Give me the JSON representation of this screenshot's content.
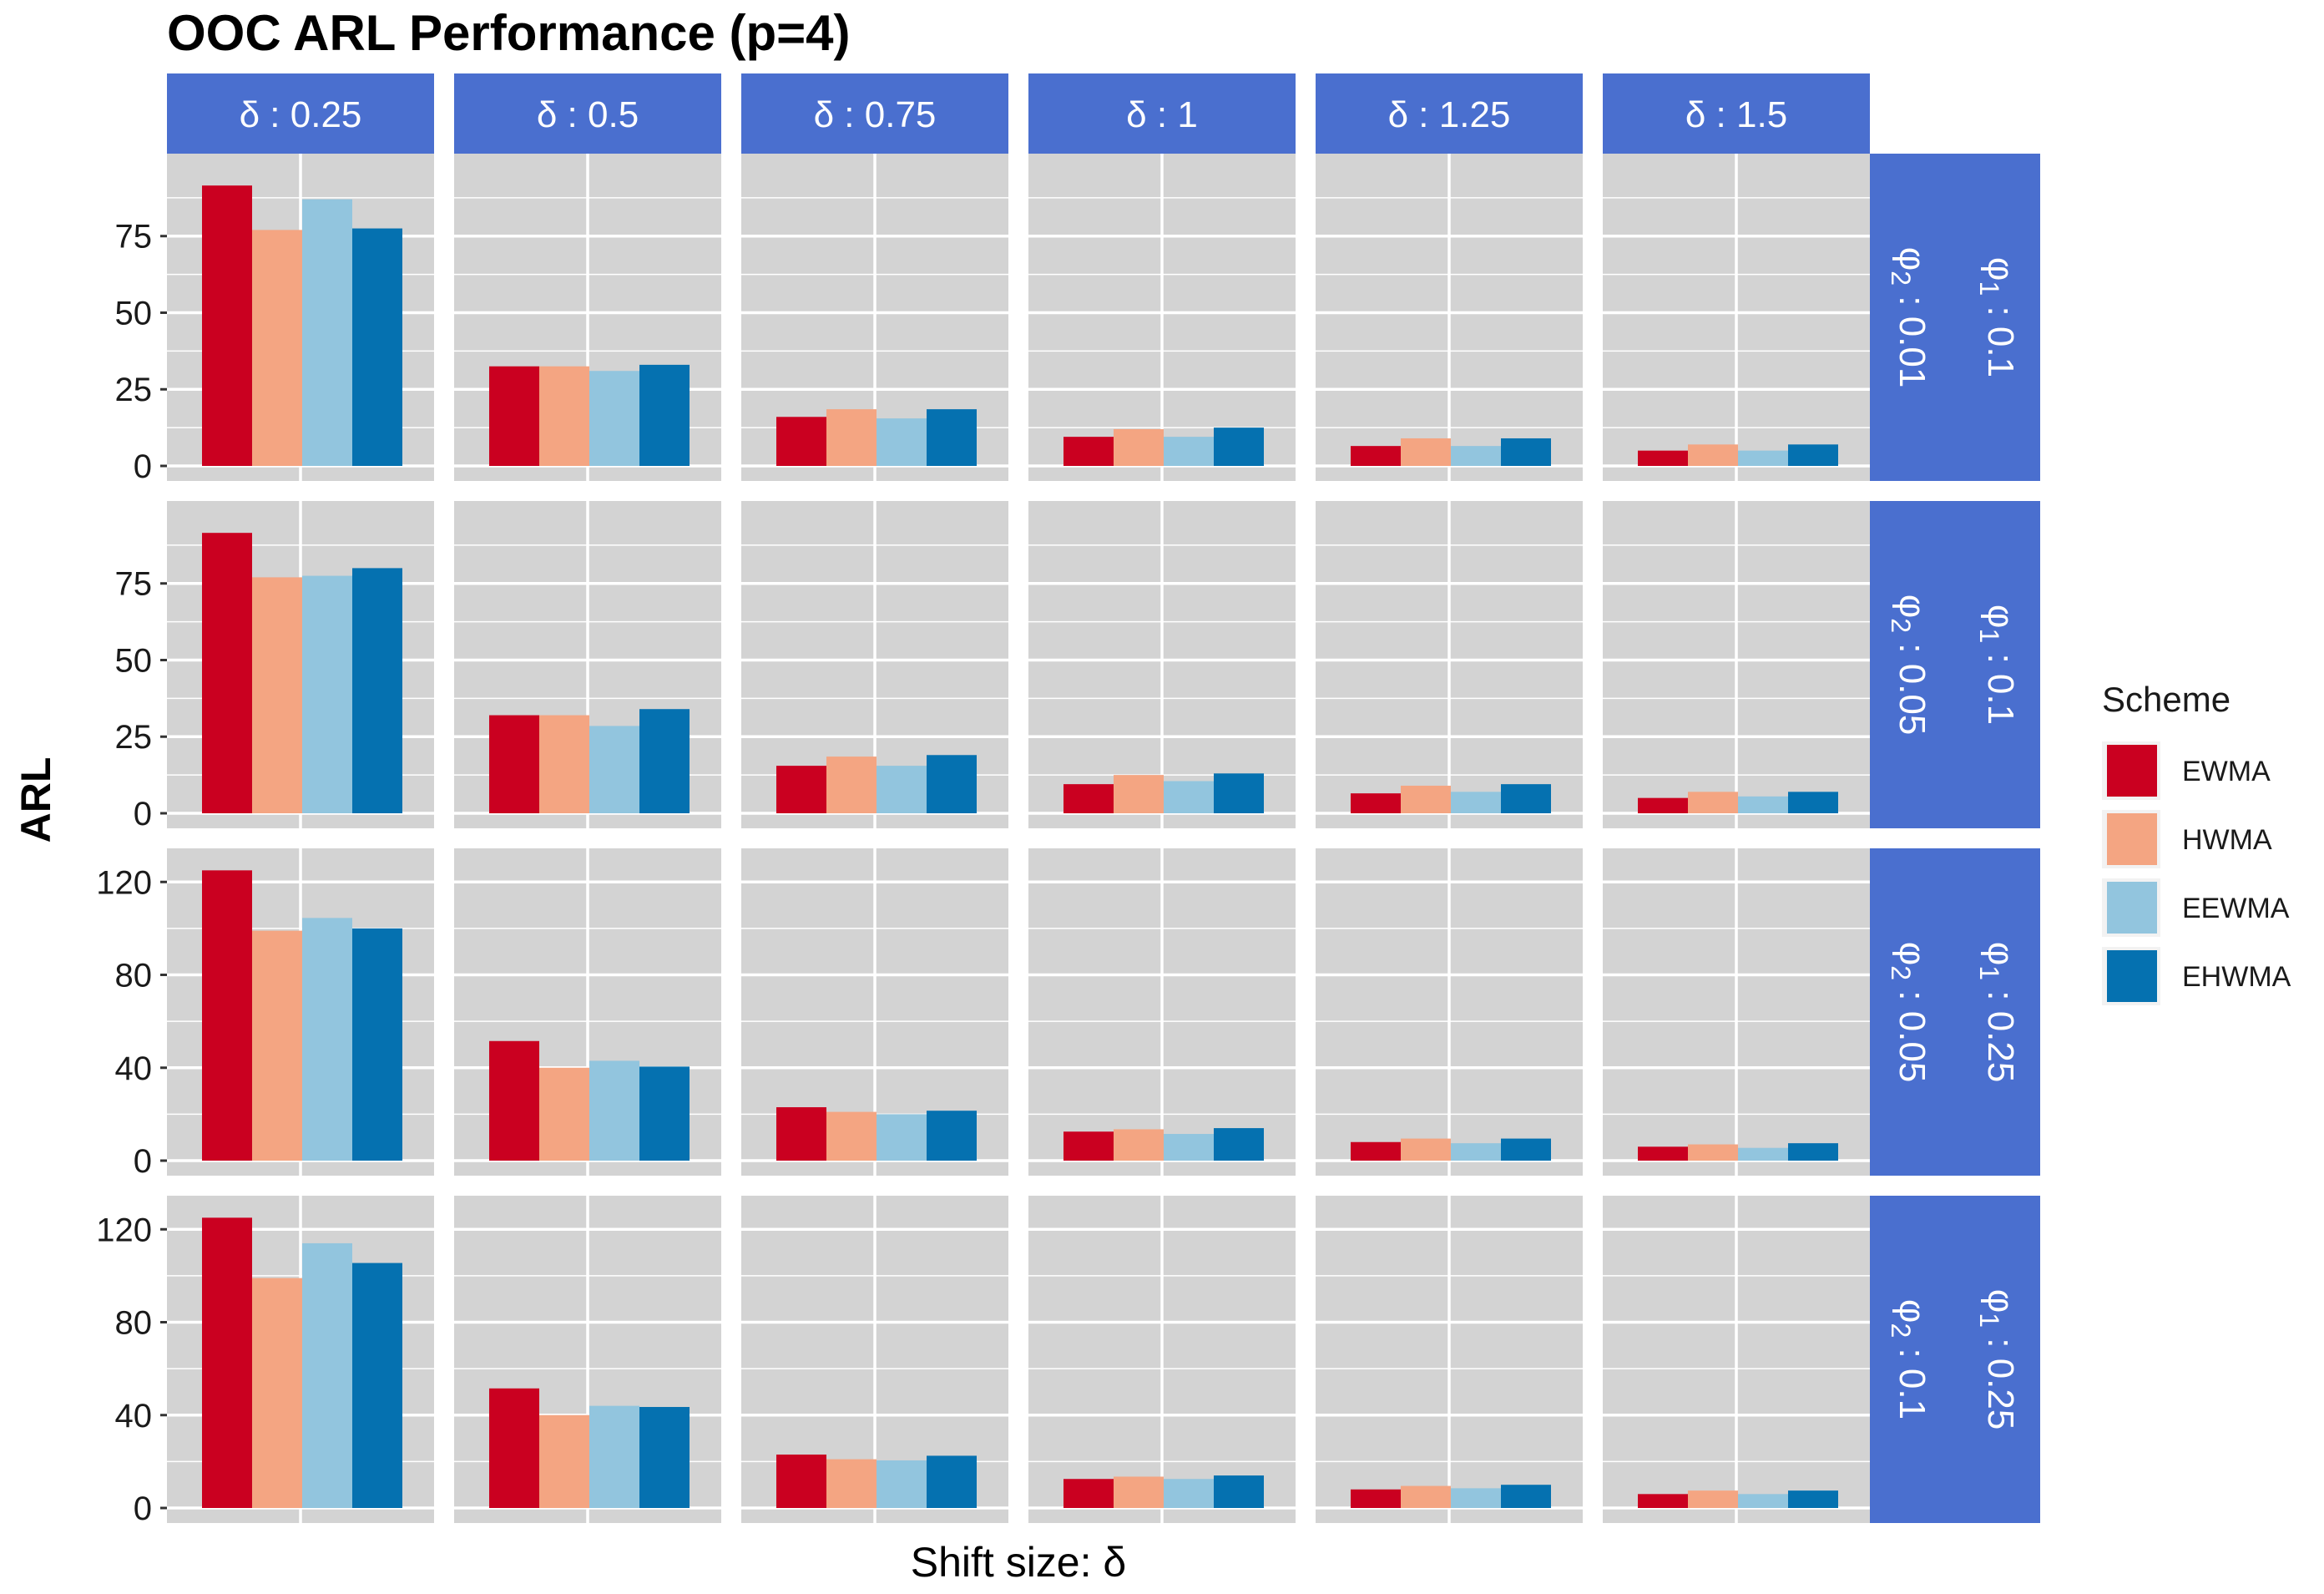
{
  "chart_data": {
    "type": "bar",
    "title": "OOC ARL Performance (p=4)",
    "xlabel": "Shift size: δ",
    "ylabel": "ARL",
    "grid": true,
    "legend_position": "right",
    "legend_title": "Scheme",
    "series": [
      {
        "name": "EWMA",
        "color": "#CA0020"
      },
      {
        "name": "HWMA",
        "color": "#F4A582"
      },
      {
        "name": "EEWMA",
        "color": "#92C5DE"
      },
      {
        "name": "EHWMA",
        "color": "#0571B0"
      }
    ],
    "facet_columns": [
      "δ : 0.25",
      "δ : 0.5",
      "δ : 0.75",
      "δ : 1",
      "δ : 1.25",
      "δ : 1.5"
    ],
    "facet_rows": [
      {
        "phi1_label": "φ1 : 0.1",
        "phi2_label": "φ2 : 0.01",
        "phi1": "0.1",
        "phi2": "0.01",
        "ylim": [
          0,
          97
        ],
        "yticks": [
          0,
          25,
          50,
          75
        ],
        "values": [
          [
            91.5,
            77,
            87,
            77.5
          ],
          [
            32.5,
            32.5,
            31,
            33
          ],
          [
            16,
            18.5,
            15.5,
            18.5
          ],
          [
            9.5,
            12,
            9.5,
            12.5
          ],
          [
            6.5,
            9,
            6.5,
            9
          ],
          [
            5,
            7,
            5,
            7
          ]
        ]
      },
      {
        "phi1_label": "φ1 : 0.1",
        "phi2_label": "φ2 : 0.05",
        "phi1": "0.1",
        "phi2": "0.05",
        "ylim": [
          0,
          97
        ],
        "yticks": [
          0,
          25,
          50,
          75
        ],
        "values": [
          [
            91.5,
            77,
            77.5,
            80
          ],
          [
            32,
            32,
            28.5,
            34
          ],
          [
            15.5,
            18.5,
            15.5,
            19
          ],
          [
            9.5,
            12.5,
            10.5,
            13
          ],
          [
            6.5,
            9,
            7,
            9.5
          ],
          [
            5,
            7,
            5.5,
            7
          ]
        ]
      },
      {
        "phi1_label": "φ1 : 0.25",
        "phi2_label": "φ2 : 0.05",
        "phi1": "0.25",
        "phi2": "0.05",
        "ylim": [
          0,
          128
        ],
        "yticks": [
          0,
          40,
          80,
          120
        ],
        "values": [
          [
            125,
            99,
            104.5,
            100
          ],
          [
            51.5,
            40,
            43,
            40.5
          ],
          [
            23,
            21,
            20,
            21.5
          ],
          [
            12.5,
            13.5,
            11.5,
            14
          ],
          [
            8,
            9.5,
            7.5,
            9.5
          ],
          [
            6,
            7,
            5.5,
            7.5
          ]
        ]
      },
      {
        "phi1_label": "φ1 : 0.25",
        "phi2_label": "φ2 : 0.1",
        "phi1": "0.25",
        "phi2": "0.1",
        "ylim": [
          0,
          128
        ],
        "yticks": [
          0,
          40,
          80,
          120
        ],
        "values": [
          [
            125,
            99,
            114,
            105.5
          ],
          [
            51.5,
            40,
            44,
            43.5
          ],
          [
            23,
            21,
            20.5,
            22.5
          ],
          [
            12.5,
            13.5,
            12.5,
            14
          ],
          [
            8,
            9.5,
            8.5,
            10
          ],
          [
            6,
            7.5,
            6,
            7.5
          ]
        ]
      }
    ]
  }
}
